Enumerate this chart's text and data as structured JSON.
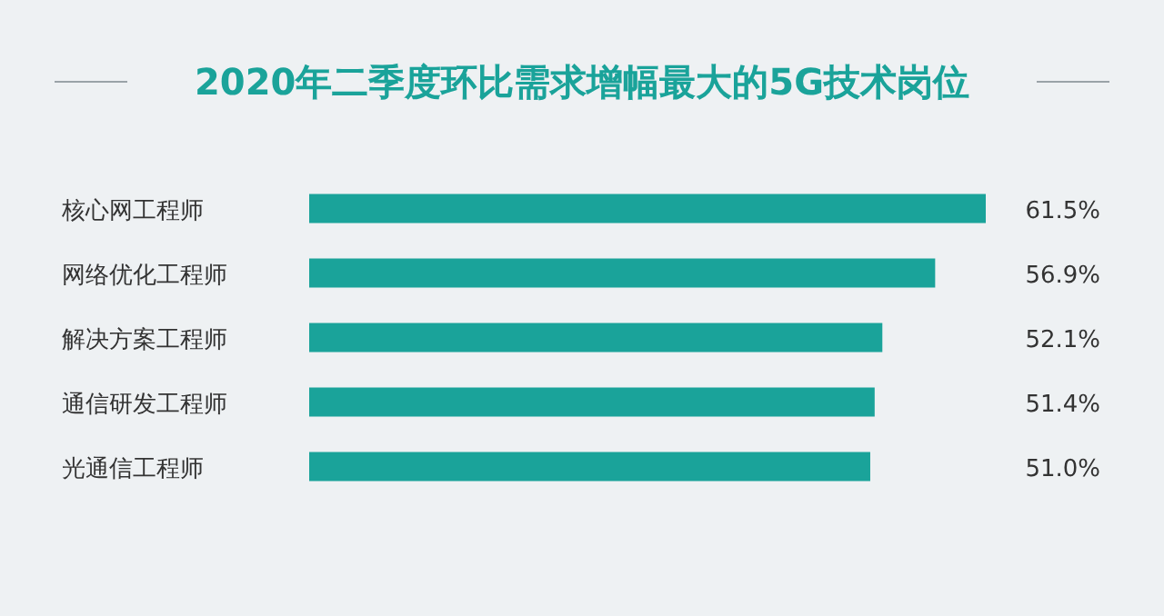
{
  "chart_data": {
    "type": "bar",
    "orientation": "horizontal",
    "title": "2020年二季度环比需求增幅最大的5G技术岗位",
    "categories": [
      "核心网工程师",
      "网络优化工程师",
      "解决方案工程师",
      "通信研发工程师",
      "光通信工程师"
    ],
    "values": [
      61.5,
      56.9,
      52.1,
      51.4,
      51.0
    ],
    "value_labels": [
      "61.5%",
      "56.9%",
      "52.1%",
      "51.4%",
      "51.0%"
    ],
    "color": "#1aa39a"
  }
}
